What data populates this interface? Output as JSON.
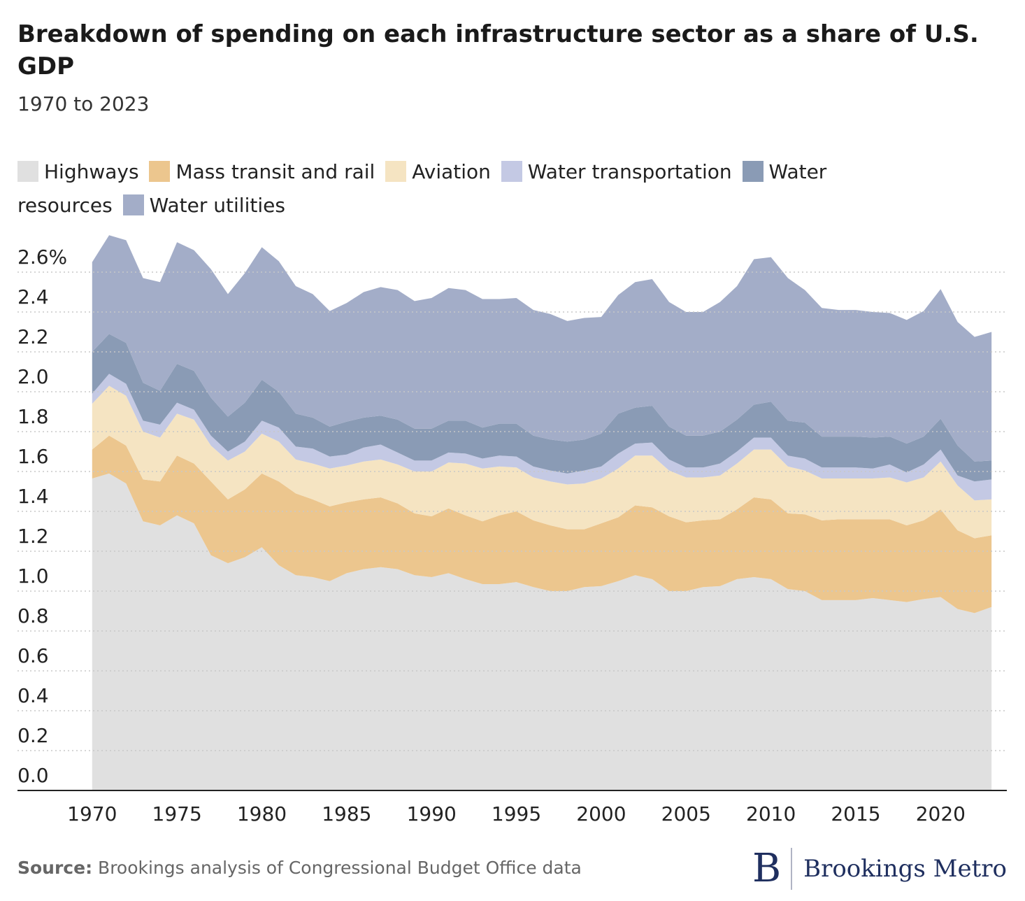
{
  "chart_data": {
    "type": "stacked_area",
    "title": "Breakdown of spending on each infrastructure sector as a share of U.S. GDP",
    "subtitle": "1970 to 2023",
    "x": [
      1970,
      1971,
      1972,
      1973,
      1974,
      1975,
      1976,
      1977,
      1978,
      1979,
      1980,
      1981,
      1982,
      1983,
      1984,
      1985,
      1986,
      1987,
      1988,
      1989,
      1990,
      1991,
      1992,
      1993,
      1994,
      1995,
      1996,
      1997,
      1998,
      1999,
      2000,
      2001,
      2002,
      2003,
      2004,
      2005,
      2006,
      2007,
      2008,
      2009,
      2010,
      2011,
      2012,
      2013,
      2014,
      2015,
      2016,
      2017,
      2018,
      2019,
      2020,
      2021,
      2022,
      2023
    ],
    "series": [
      {
        "name": "Highways",
        "color": "#e0e0e0",
        "values": [
          1.565,
          1.59,
          1.54,
          1.35,
          1.33,
          1.38,
          1.34,
          1.18,
          1.14,
          1.17,
          1.22,
          1.13,
          1.08,
          1.07,
          1.05,
          1.09,
          1.11,
          1.12,
          1.11,
          1.08,
          1.07,
          1.09,
          1.06,
          1.035,
          1.035,
          1.045,
          1.02,
          1.0,
          1.0,
          1.02,
          1.025,
          1.05,
          1.08,
          1.06,
          1.0,
          1.0,
          1.02,
          1.025,
          1.06,
          1.07,
          1.06,
          1.01,
          1.0,
          0.955,
          0.955,
          0.955,
          0.965,
          0.955,
          0.945,
          0.96,
          0.97,
          0.91,
          0.89,
          0.92
        ]
      },
      {
        "name": "Mass transit and rail",
        "color": "#ecc68e",
        "values": [
          0.145,
          0.19,
          0.19,
          0.21,
          0.22,
          0.3,
          0.3,
          0.37,
          0.32,
          0.34,
          0.37,
          0.42,
          0.41,
          0.39,
          0.375,
          0.355,
          0.35,
          0.35,
          0.33,
          0.31,
          0.305,
          0.325,
          0.32,
          0.315,
          0.345,
          0.355,
          0.335,
          0.33,
          0.31,
          0.29,
          0.315,
          0.32,
          0.35,
          0.36,
          0.375,
          0.345,
          0.335,
          0.335,
          0.35,
          0.4,
          0.4,
          0.38,
          0.385,
          0.4,
          0.405,
          0.405,
          0.395,
          0.405,
          0.385,
          0.395,
          0.44,
          0.395,
          0.375,
          0.36
        ]
      },
      {
        "name": "Aviation",
        "color": "#f5e4c2",
        "values": [
          0.23,
          0.25,
          0.25,
          0.24,
          0.22,
          0.21,
          0.22,
          0.18,
          0.195,
          0.19,
          0.2,
          0.2,
          0.17,
          0.18,
          0.19,
          0.185,
          0.19,
          0.19,
          0.195,
          0.21,
          0.225,
          0.23,
          0.26,
          0.265,
          0.245,
          0.22,
          0.215,
          0.22,
          0.225,
          0.23,
          0.225,
          0.245,
          0.25,
          0.26,
          0.23,
          0.225,
          0.215,
          0.22,
          0.23,
          0.24,
          0.25,
          0.235,
          0.22,
          0.21,
          0.205,
          0.205,
          0.205,
          0.21,
          0.215,
          0.215,
          0.24,
          0.225,
          0.19,
          0.18
        ]
      },
      {
        "name": "Water transportation",
        "color": "#c4c9e4",
        "values": [
          0.05,
          0.06,
          0.06,
          0.055,
          0.065,
          0.055,
          0.05,
          0.05,
          0.045,
          0.05,
          0.065,
          0.07,
          0.065,
          0.075,
          0.06,
          0.055,
          0.07,
          0.075,
          0.06,
          0.055,
          0.055,
          0.05,
          0.05,
          0.05,
          0.055,
          0.055,
          0.055,
          0.055,
          0.055,
          0.065,
          0.06,
          0.075,
          0.06,
          0.065,
          0.055,
          0.05,
          0.05,
          0.06,
          0.06,
          0.06,
          0.06,
          0.055,
          0.06,
          0.055,
          0.055,
          0.055,
          0.05,
          0.065,
          0.05,
          0.065,
          0.06,
          0.05,
          0.095,
          0.1
        ]
      },
      {
        "name": "Water resources",
        "color": "#8a9bb5",
        "values": [
          0.21,
          0.2,
          0.205,
          0.19,
          0.17,
          0.195,
          0.195,
          0.19,
          0.175,
          0.195,
          0.205,
          0.18,
          0.165,
          0.155,
          0.15,
          0.165,
          0.15,
          0.145,
          0.165,
          0.16,
          0.16,
          0.16,
          0.165,
          0.155,
          0.16,
          0.165,
          0.155,
          0.155,
          0.16,
          0.155,
          0.165,
          0.2,
          0.18,
          0.185,
          0.165,
          0.16,
          0.16,
          0.16,
          0.16,
          0.165,
          0.18,
          0.175,
          0.18,
          0.155,
          0.155,
          0.155,
          0.155,
          0.14,
          0.145,
          0.14,
          0.155,
          0.15,
          0.1,
          0.095
        ]
      },
      {
        "name": "Water utilities",
        "color": "#a3adc8",
        "values": [
          0.45,
          0.495,
          0.515,
          0.525,
          0.545,
          0.61,
          0.605,
          0.645,
          0.615,
          0.65,
          0.665,
          0.655,
          0.64,
          0.62,
          0.58,
          0.595,
          0.63,
          0.645,
          0.65,
          0.64,
          0.655,
          0.665,
          0.655,
          0.645,
          0.625,
          0.63,
          0.63,
          0.63,
          0.605,
          0.61,
          0.585,
          0.595,
          0.63,
          0.635,
          0.625,
          0.62,
          0.62,
          0.65,
          0.67,
          0.73,
          0.725,
          0.715,
          0.665,
          0.645,
          0.635,
          0.635,
          0.63,
          0.62,
          0.62,
          0.63,
          0.65,
          0.62,
          0.625,
          0.645
        ]
      }
    ],
    "xlim": [
      1965.6,
      2023.9
    ],
    "xticks": [
      1970,
      1975,
      1980,
      1985,
      1990,
      1995,
      2000,
      2005,
      2010,
      2015,
      2020
    ],
    "ylim": [
      0,
      2.8
    ],
    "yticks": [
      {
        "value": 0,
        "label": "0.0"
      },
      0.2,
      0.4,
      0.6,
      0.8,
      {
        "value": 1,
        "label": "1.0"
      },
      1.2,
      1.4,
      1.6,
      1.8,
      {
        "value": 2,
        "label": "2.0"
      },
      2.2,
      2.4,
      {
        "value": 2.6,
        "label": "2.6%"
      }
    ],
    "grid": true
  },
  "footer": {
    "source_label": "Source:",
    "source_text": "Brookings analysis of Congressional Budget Office data",
    "logo_mark": "B",
    "logo_text": "Brookings Metro"
  }
}
